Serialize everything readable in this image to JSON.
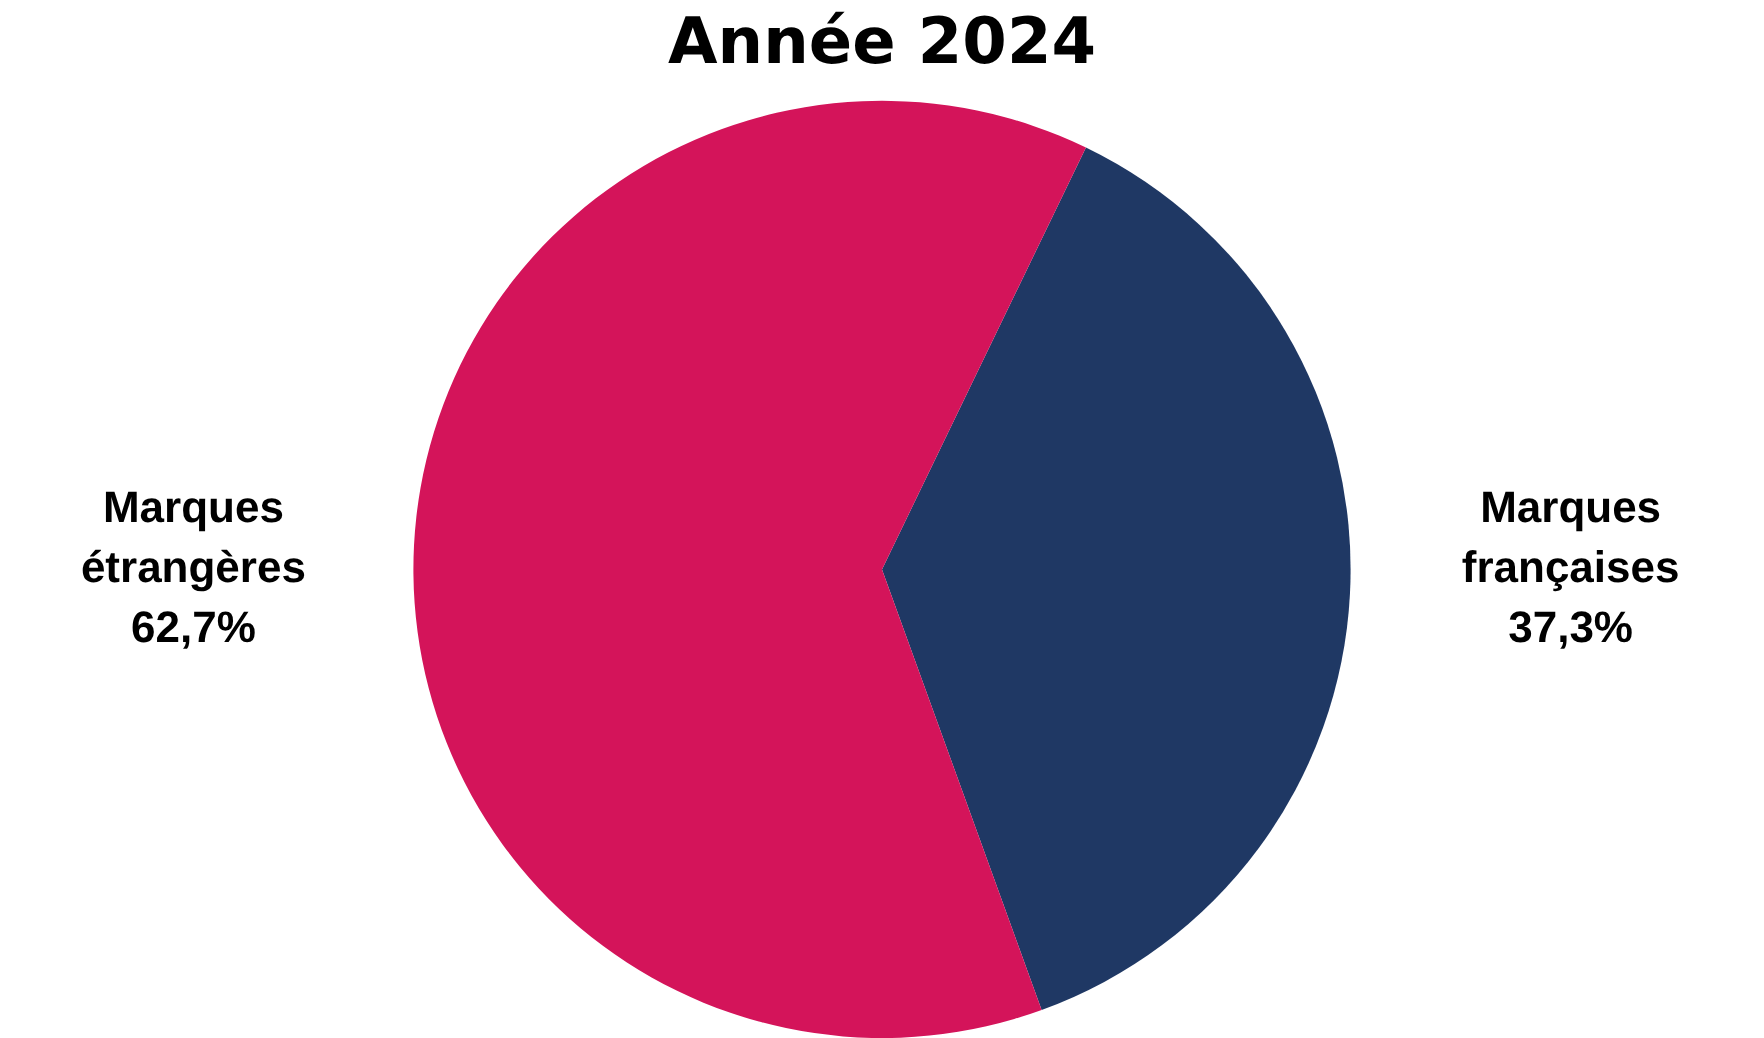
{
  "chart_data": {
    "type": "pie",
    "title": "Année 2024",
    "categories": [
      "Marques françaises",
      "Marques étrangères"
    ],
    "values": [
      37.3,
      62.7
    ],
    "colors": [
      "#1f3864",
      "#d4145a"
    ],
    "value_labels": [
      "37,3%",
      "62,7%"
    ],
    "legend": false
  }
}
